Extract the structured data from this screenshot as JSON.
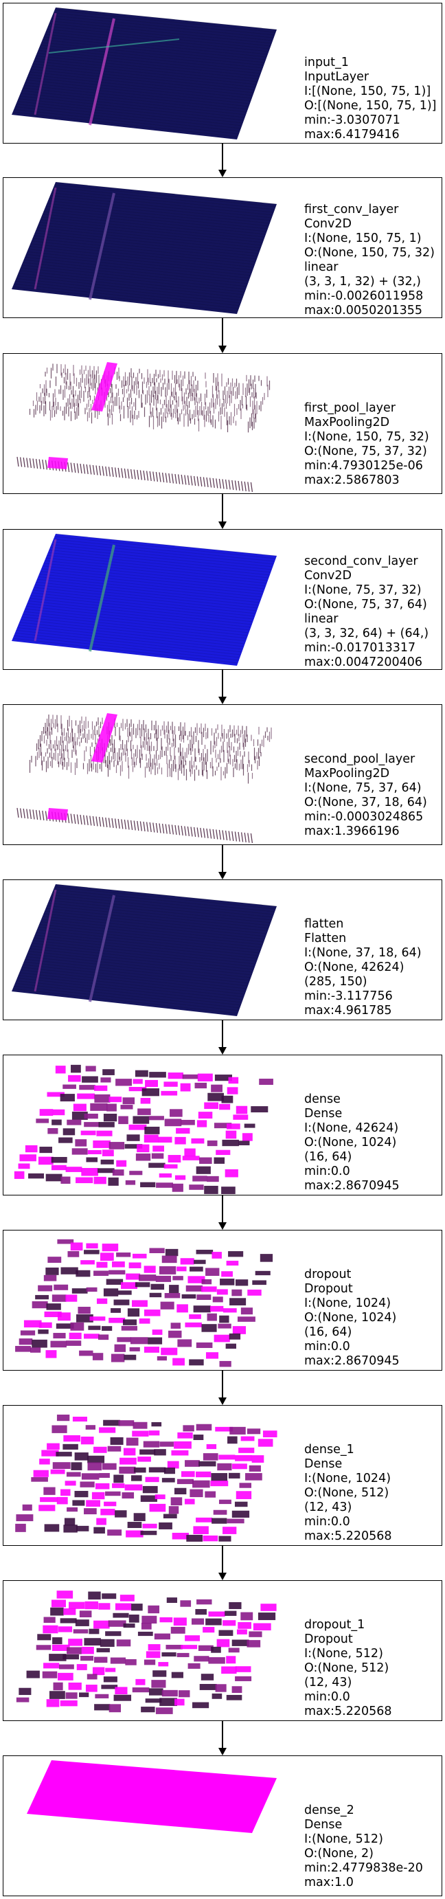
{
  "layers": [
    {
      "lines": [
        "input_1",
        "InputLayer",
        "I:[(None, 150, 75, 1)]",
        "O:[(None, 150, 75, 1)]",
        "min:-3.0307071",
        "max:6.4179416"
      ],
      "viz": "dense-plane",
      "color": "#14145a"
    },
    {
      "lines": [
        "first_conv_layer",
        "Conv2D",
        "I:(None, 150, 75, 1)",
        "O:(None, 150, 75, 32)",
        "linear",
        "(3, 3, 1, 32) + (32,)",
        "min:-0.0026011958",
        "max:0.0050201355"
      ],
      "viz": "dense-plane",
      "color": "#14145a"
    },
    {
      "lines": [
        "first_pool_layer",
        "MaxPooling2D",
        "I:(None, 150, 75, 32)",
        "O:(None, 75, 37, 32)",
        "min:4.7930125e-06",
        "max:2.5867803"
      ],
      "viz": "sparse-rows",
      "color": "#5a2a4a"
    },
    {
      "lines": [
        "second_conv_layer",
        "Conv2D",
        "I:(None, 75, 37, 32)",
        "O:(None, 75, 37, 64)",
        "linear",
        "(3, 3, 32, 64) + (64,)",
        "min:-0.017013317",
        "max:0.0047200406"
      ],
      "viz": "dense-plane",
      "color": "#1a1adc"
    },
    {
      "lines": [
        "second_pool_layer",
        "MaxPooling2D",
        "I:(None, 75, 37, 64)",
        "O:(None, 37, 18, 64)",
        "min:-0.0003024865",
        "max:1.3966196"
      ],
      "viz": "sparse-rows",
      "color": "#5a2a4a"
    },
    {
      "lines": [
        "flatten",
        "Flatten",
        "I:(None, 37, 18, 64)",
        "O:(None, 42624)",
        "(285, 150)",
        "min:-3.117756",
        "max:4.961785"
      ],
      "viz": "dense-plane",
      "color": "#16165e"
    },
    {
      "lines": [
        "dense",
        "Dense",
        "I:(None, 42624)",
        "O:(None, 1024)",
        "(16, 64)",
        "min:0.0",
        "max:2.8670945"
      ],
      "viz": "blocks",
      "color": "#8a1a8a"
    },
    {
      "lines": [
        "dropout",
        "Dropout",
        "I:(None, 1024)",
        "O:(None, 1024)",
        "(16, 64)",
        "min:0.0",
        "max:2.8670945"
      ],
      "viz": "blocks",
      "color": "#8a1a8a"
    },
    {
      "lines": [
        "dense_1",
        "Dense",
        "I:(None, 1024)",
        "O:(None, 512)",
        "(12, 43)",
        "min:0.0",
        "max:5.220568"
      ],
      "viz": "blocks",
      "color": "#8a1a8a"
    },
    {
      "lines": [
        "dropout_1",
        "Dropout",
        "I:(None, 512)",
        "O:(None, 512)",
        "(12, 43)",
        "min:0.0",
        "max:5.220568"
      ],
      "viz": "blocks",
      "color": "#8a1a8a"
    },
    {
      "lines": [
        "dense_2",
        "Dense",
        "I:(None, 512)",
        "O:(None, 2)",
        "min:2.4779838e-20",
        "max:1.0"
      ],
      "viz": "solid-plane",
      "color": "#ff00ff"
    }
  ]
}
